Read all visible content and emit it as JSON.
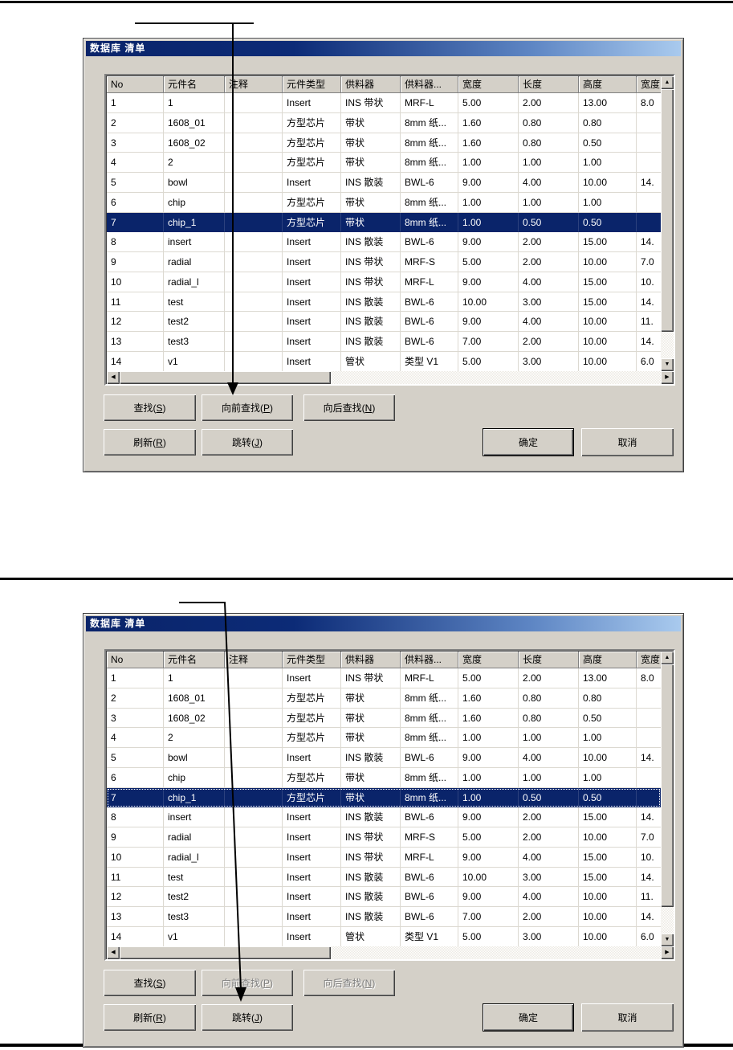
{
  "window": {
    "title": "数据库 清单"
  },
  "table": {
    "columns": [
      "No",
      "元件名",
      "注释",
      "元件类型",
      "供料器",
      "供料器...",
      "宽度",
      "长度",
      "高度",
      "宽度"
    ],
    "selected_no": 7,
    "rows": [
      [
        "1",
        "1",
        "",
        "Insert",
        "INS 带状",
        "MRF-L",
        "5.00",
        "2.00",
        "13.00",
        "8.0"
      ],
      [
        "2",
        "1608_01",
        "",
        "方型芯片",
        "带状",
        "8mm 纸...",
        "1.60",
        "0.80",
        "0.80",
        ""
      ],
      [
        "3",
        "1608_02",
        "",
        "方型芯片",
        "带状",
        "8mm 纸...",
        "1.60",
        "0.80",
        "0.50",
        ""
      ],
      [
        "4",
        "2",
        "",
        "方型芯片",
        "带状",
        "8mm 纸...",
        "1.00",
        "1.00",
        "1.00",
        ""
      ],
      [
        "5",
        "bowl",
        "",
        "Insert",
        "INS 散装",
        "BWL-6",
        "9.00",
        "4.00",
        "10.00",
        "14."
      ],
      [
        "6",
        "chip",
        "",
        "方型芯片",
        "带状",
        "8mm 纸...",
        "1.00",
        "1.00",
        "1.00",
        ""
      ],
      [
        "7",
        "chip_1",
        "",
        "方型芯片",
        "带状",
        "8mm 纸...",
        "1.00",
        "0.50",
        "0.50",
        ""
      ],
      [
        "8",
        "insert",
        "",
        "Insert",
        "INS 散装",
        "BWL-6",
        "9.00",
        "2.00",
        "15.00",
        "14."
      ],
      [
        "9",
        "radial",
        "",
        "Insert",
        "INS 带状",
        "MRF-S",
        "5.00",
        "2.00",
        "10.00",
        "7.0"
      ],
      [
        "10",
        "radial_l",
        "",
        "Insert",
        "INS 带状",
        "MRF-L",
        "9.00",
        "4.00",
        "15.00",
        "10."
      ],
      [
        "11",
        "test",
        "",
        "Insert",
        "INS 散装",
        "BWL-6",
        "10.00",
        "3.00",
        "15.00",
        "14."
      ],
      [
        "12",
        "test2",
        "",
        "Insert",
        "INS 散装",
        "BWL-6",
        "9.00",
        "4.00",
        "10.00",
        "11."
      ],
      [
        "13",
        "test3",
        "",
        "Insert",
        "INS 散装",
        "BWL-6",
        "7.00",
        "2.00",
        "10.00",
        "14."
      ],
      [
        "14",
        "v1",
        "",
        "Insert",
        "管状",
        "类型 V1",
        "5.00",
        "3.00",
        "10.00",
        "6.0"
      ]
    ]
  },
  "buttons": {
    "find": {
      "pre": "查找(",
      "key": "S",
      "post": ")"
    },
    "find_prev": {
      "pre": "向前查找(",
      "key": "P",
      "post": ")"
    },
    "find_next": {
      "pre": "向后查找(",
      "key": "N",
      "post": ")"
    },
    "refresh": {
      "pre": "刷新(",
      "key": "R",
      "post": ")"
    },
    "jump": {
      "pre": "跳转(",
      "key": "J",
      "post": ")"
    },
    "ok": "确定",
    "cancel": "取消"
  },
  "icons": {
    "scroll_up": "▲",
    "scroll_down": "▼",
    "scroll_left": "◀",
    "scroll_right": "▶"
  },
  "colors": {
    "titlebar_start": "#0A246A",
    "titlebar_end": "#A9CAEE",
    "selection": "#0A246A",
    "button_face": "#D4D0C8"
  },
  "dialog1": {
    "disabled_buttons": []
  },
  "dialog2": {
    "disabled_buttons": [
      "find_prev",
      "find_next"
    ]
  }
}
